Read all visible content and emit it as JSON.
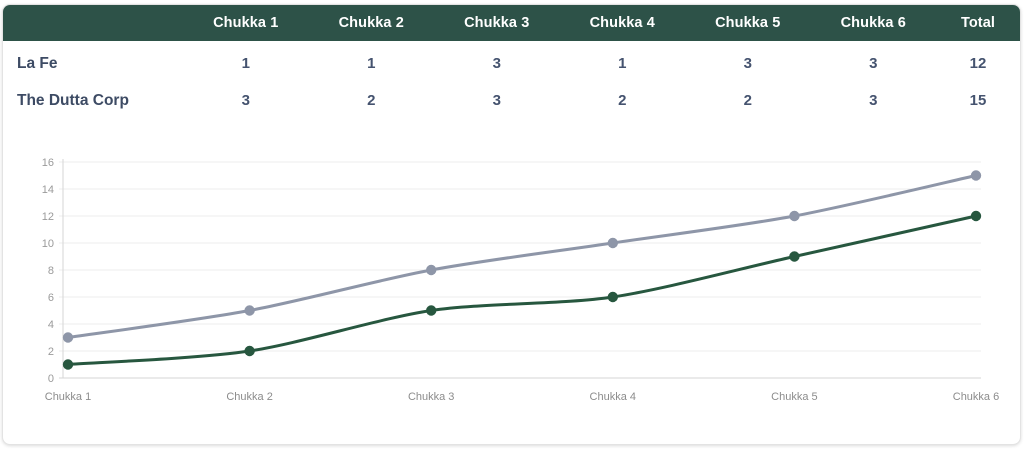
{
  "table": {
    "team_column_header": "",
    "column_headers": [
      "Chukka 1",
      "Chukka 2",
      "Chukka 3",
      "Chukka 4",
      "Chukka 5",
      "Chukka 6",
      "Total"
    ],
    "rows": [
      {
        "team": "La Fe",
        "scores": [
          "1",
          "1",
          "3",
          "1",
          "3",
          "3"
        ],
        "total": "12"
      },
      {
        "team": "The Dutta Corp",
        "scores": [
          "3",
          "2",
          "3",
          "2",
          "2",
          "3"
        ],
        "total": "15"
      }
    ]
  },
  "chart_data": {
    "type": "line",
    "categories": [
      "Chukka 1",
      "Chukka 2",
      "Chukka 3",
      "Chukka 4",
      "Chukka 5",
      "Chukka 6"
    ],
    "series": [
      {
        "name": "La Fe",
        "values": [
          1,
          2,
          5,
          6,
          9,
          12
        ],
        "color": "#27573f"
      },
      {
        "name": "The Dutta Corp",
        "values": [
          3,
          5,
          8,
          10,
          12,
          15
        ],
        "color": "#8e96a8"
      }
    ],
    "title": "",
    "xlabel": "",
    "ylabel": "",
    "ylim": [
      0,
      16
    ],
    "y_ticks": [
      0,
      2,
      4,
      6,
      8,
      10,
      12,
      14,
      16
    ],
    "grid": true,
    "legend_position": "none"
  },
  "colors": {
    "header_bg": "#2d5248",
    "header_text": "#ffffff",
    "team_text": "#3d4b64",
    "value_text": "#45536f",
    "gridline": "#ececec",
    "axis_line": "#d6d6d6",
    "y_tick_text": "#9a9a9a",
    "x_tick_text": "#8c8c8c"
  }
}
